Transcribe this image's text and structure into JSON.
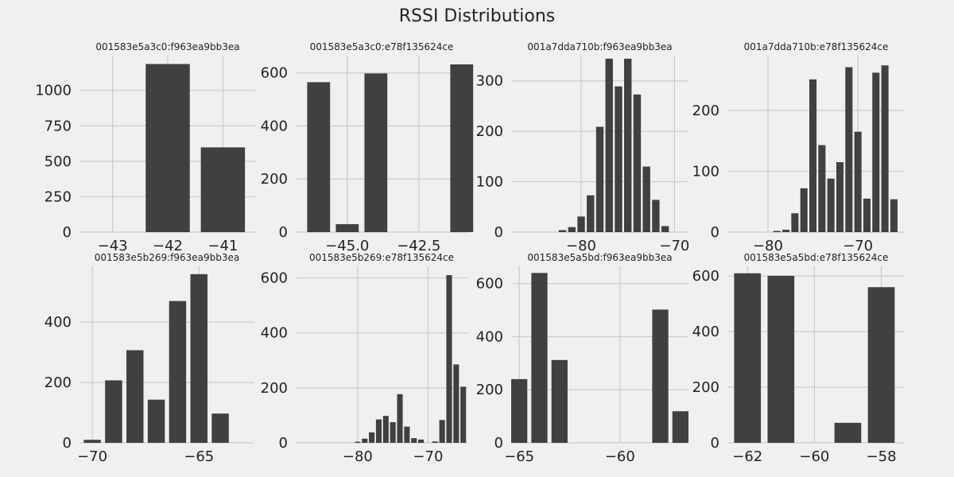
{
  "figure": {
    "title": "RSSI Distributions",
    "background": "#f0f0f0",
    "bar_color": "#404040",
    "grid_color": "#cbcbcb"
  },
  "chart_data": [
    {
      "type": "bar",
      "title": "001583e5a3c0:f963ea9bb3ea",
      "xlim": [
        -43.6,
        -40.4
      ],
      "ylim": [
        0,
        1245
      ],
      "xticks": [
        -43,
        -42,
        -41
      ],
      "xtick_labels": [
        "−43",
        "−42",
        "−41"
      ],
      "yticks": [
        0,
        250,
        500,
        750,
        1000
      ],
      "ytick_labels": [
        "0",
        "250",
        "500",
        "750",
        "1000"
      ],
      "bar_width": 0.8,
      "bars": [
        {
          "x": -42,
          "y": 1186
        },
        {
          "x": -41,
          "y": 598
        }
      ]
    },
    {
      "type": "bar",
      "title": "001583e5a3c0:e78f135624ce",
      "xlim": [
        -46.8,
        -40.8
      ],
      "ylim": [
        0,
        665
      ],
      "xticks": [
        -45.0,
        -42.5
      ],
      "xtick_labels": [
        "−45.0",
        "−42.5"
      ],
      "yticks": [
        0,
        200,
        400,
        600
      ],
      "ytick_labels": [
        "0",
        "200",
        "400",
        "600"
      ],
      "bar_width": 0.8,
      "bars": [
        {
          "x": -46,
          "y": 565
        },
        {
          "x": -45,
          "y": 30
        },
        {
          "x": -44,
          "y": 598
        },
        {
          "x": -41,
          "y": 632
        }
      ]
    },
    {
      "type": "bar",
      "title": "001a7dda710b:f963ea9bb3ea",
      "xlim": [
        -87.5,
        -68.5
      ],
      "ylim": [
        0,
        350
      ],
      "xticks": [
        -80,
        -70
      ],
      "xtick_labels": [
        "−80",
        "−70"
      ],
      "yticks": [
        0,
        100,
        200,
        300
      ],
      "ytick_labels": [
        "0",
        "100",
        "200",
        "300"
      ],
      "bar_width": 0.8,
      "bars": [
        {
          "x": -82,
          "y": 4
        },
        {
          "x": -81,
          "y": 10
        },
        {
          "x": -80,
          "y": 31
        },
        {
          "x": -79,
          "y": 73
        },
        {
          "x": -78,
          "y": 209
        },
        {
          "x": -77,
          "y": 344
        },
        {
          "x": -76,
          "y": 289
        },
        {
          "x": -75,
          "y": 344
        },
        {
          "x": -74,
          "y": 273
        },
        {
          "x": -73,
          "y": 130
        },
        {
          "x": -72,
          "y": 64
        },
        {
          "x": -71,
          "y": 12
        }
      ]
    },
    {
      "type": "bar",
      "title": "001a7dda710b:e78f135624ce",
      "xlim": [
        -84.5,
        -64.8
      ],
      "ylim": [
        0,
        290
      ],
      "xticks": [
        -80,
        -70
      ],
      "xtick_labels": [
        "−80",
        "−70"
      ],
      "yticks": [
        0,
        100,
        200
      ],
      "ytick_labels": [
        "0",
        "100",
        "200"
      ],
      "bar_width": 0.8,
      "bars": [
        {
          "x": -79,
          "y": 2
        },
        {
          "x": -78,
          "y": 4
        },
        {
          "x": -77,
          "y": 31
        },
        {
          "x": -76,
          "y": 72
        },
        {
          "x": -75,
          "y": 251
        },
        {
          "x": -74,
          "y": 143
        },
        {
          "x": -73,
          "y": 88
        },
        {
          "x": -72,
          "y": 115
        },
        {
          "x": -71,
          "y": 271
        },
        {
          "x": -70,
          "y": 165
        },
        {
          "x": -69,
          "y": 55
        },
        {
          "x": -68,
          "y": 262
        },
        {
          "x": -67,
          "y": 274
        },
        {
          "x": -66,
          "y": 54
        }
      ]
    },
    {
      "type": "bar",
      "title": "001583e5b269:f963ea9bb3ea",
      "xlim": [
        -70.6,
        -62.4
      ],
      "ylim": [
        0,
        585
      ],
      "xticks": [
        -70,
        -65
      ],
      "xtick_labels": [
        "−70",
        "−65"
      ],
      "yticks": [
        0,
        200,
        400
      ],
      "ytick_labels": [
        "0",
        "200",
        "400"
      ],
      "bar_width": 0.8,
      "bars": [
        {
          "x": -70,
          "y": 10
        },
        {
          "x": -69,
          "y": 207
        },
        {
          "x": -68,
          "y": 307
        },
        {
          "x": -67,
          "y": 143
        },
        {
          "x": -66,
          "y": 470
        },
        {
          "x": -65,
          "y": 559
        },
        {
          "x": -64,
          "y": 97
        }
      ]
    },
    {
      "type": "bar",
      "title": "001583e5b269:e78f135624ce",
      "xlim": [
        -88.8,
        -64.4
      ],
      "ylim": [
        0,
        642
      ],
      "xticks": [
        -80,
        -70
      ],
      "xtick_labels": [
        "−80",
        "−70"
      ],
      "yticks": [
        0,
        200,
        400,
        600
      ],
      "ytick_labels": [
        "0",
        "200",
        "400",
        "600"
      ],
      "bar_width": 0.8,
      "bars": [
        {
          "x": -80,
          "y": 4
        },
        {
          "x": -79,
          "y": 15
        },
        {
          "x": -78,
          "y": 38
        },
        {
          "x": -77,
          "y": 85
        },
        {
          "x": -76,
          "y": 98
        },
        {
          "x": -75,
          "y": 75
        },
        {
          "x": -74,
          "y": 177
        },
        {
          "x": -73,
          "y": 59
        },
        {
          "x": -72,
          "y": 17
        },
        {
          "x": -71,
          "y": 12
        },
        {
          "x": -69,
          "y": 5
        },
        {
          "x": -68,
          "y": 83
        },
        {
          "x": -67,
          "y": 610
        },
        {
          "x": -66,
          "y": 285
        },
        {
          "x": -65,
          "y": 204
        }
      ]
    },
    {
      "type": "bar",
      "title": "001583e5a5bd:f963ea9bb3ea",
      "xlim": [
        -65.4,
        -56.6
      ],
      "ylim": [
        0,
        665
      ],
      "xticks": [
        -65,
        -60
      ],
      "xtick_labels": [
        "−65",
        "−60"
      ],
      "yticks": [
        0,
        200,
        400,
        600
      ],
      "ytick_labels": [
        "0",
        "200",
        "400",
        "600"
      ],
      "bar_width": 0.8,
      "bars": [
        {
          "x": -65,
          "y": 240
        },
        {
          "x": -64,
          "y": 640
        },
        {
          "x": -63,
          "y": 312
        },
        {
          "x": -58,
          "y": 502
        },
        {
          "x": -57,
          "y": 119
        }
      ]
    },
    {
      "type": "bar",
      "title": "001583e5a5bd:e78f135624ce",
      "xlim": [
        -62.6,
        -57.3
      ],
      "ylim": [
        0,
        635
      ],
      "xticks": [
        -62,
        -60,
        -58
      ],
      "xtick_labels": [
        "−62",
        "−60",
        "−58"
      ],
      "yticks": [
        0,
        200,
        400,
        600
      ],
      "ytick_labels": [
        "0",
        "200",
        "400",
        "600"
      ],
      "bar_width": 0.8,
      "bars": [
        {
          "x": -62,
          "y": 610
        },
        {
          "x": -61,
          "y": 601
        },
        {
          "x": -59,
          "y": 72
        },
        {
          "x": -58,
          "y": 560
        }
      ]
    }
  ]
}
